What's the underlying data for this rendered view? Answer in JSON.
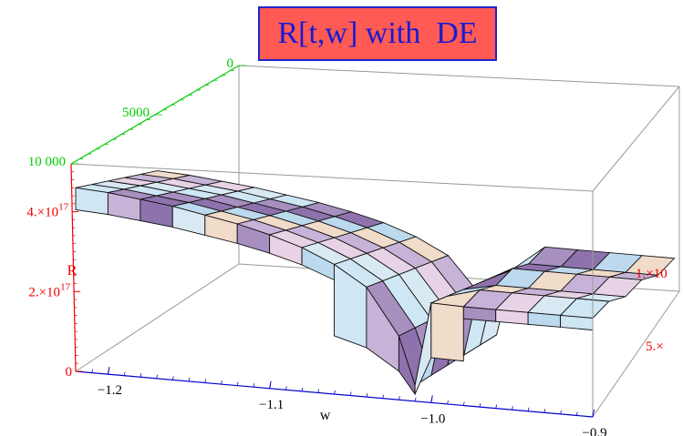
{
  "title": "R[t,w] with  DE",
  "colors": {
    "title_bg": "#ff5a54",
    "title_border": "#2222cc",
    "title_text": "#1a1ad0",
    "w_axis": "#0000cc",
    "t_axis": "#00cc00",
    "r_axis": "#ee0000",
    "box": "#999999",
    "mesh": "#111111"
  },
  "chart_data": {
    "type": "surface3d",
    "title": "R[t,w] with  DE",
    "axes": {
      "w": {
        "label": "w",
        "range": [
          -1.22,
          -0.9
        ],
        "ticks": [
          {
            "value": -1.2,
            "label": "−1.2"
          },
          {
            "value": -1.1,
            "label": "−1.1"
          },
          {
            "value": -1.0,
            "label": "−1.0"
          },
          {
            "value": -0.9,
            "label": "−0.9"
          }
        ]
      },
      "t": {
        "label": "",
        "range": [
          0,
          10000
        ],
        "ticks": [
          {
            "value": 0,
            "label": "0"
          },
          {
            "value": 5000,
            "label": "5000"
          },
          {
            "value": 10000,
            "label": "10 000"
          }
        ]
      },
      "R": {
        "label": "R",
        "range": [
          0,
          5.2e+17
        ],
        "ticks": [
          {
            "value": 0,
            "label": "0"
          },
          {
            "value": 2e+17,
            "label": "2.×10",
            "exp": "17"
          },
          {
            "value": 4e+17,
            "label": "4.×10",
            "exp": "17"
          }
        ]
      },
      "side": {
        "ticks": [
          {
            "label": "1.×10"
          },
          {
            "label": "5.×"
          }
        ]
      }
    },
    "surface": {
      "w_values": [
        -1.22,
        -1.2,
        -1.18,
        -1.16,
        -1.14,
        -1.12,
        -1.1,
        -1.08,
        -1.06,
        -1.04,
        -1.02,
        -1.01,
        -1.0,
        -0.98,
        -0.96,
        -0.94,
        -0.92,
        -0.9
      ],
      "t_values": [
        10000,
        9000,
        8000,
        7000,
        6000,
        5000
      ],
      "R_peak": [
        4.6e+17,
        4.55e+17,
        4.45e+17,
        4.35e+17,
        4.2e+17,
        4.05e+17,
        3.85e+17,
        3.6e+17,
        3.25e+17,
        2.75e+17,
        1.6e+17,
        4e+16,
        2.5e+17,
        2.55e+17,
        2.55e+17,
        2.55e+17,
        2.55e+17,
        2.55e+17
      ]
    },
    "grid": false,
    "legend": "none"
  }
}
